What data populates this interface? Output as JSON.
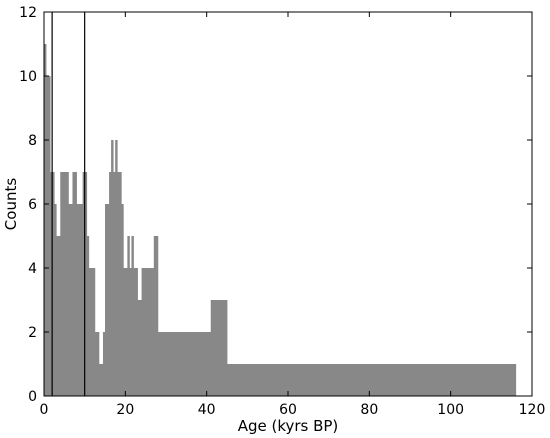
{
  "chart_data": {
    "type": "bar",
    "xlabel": "Age (kyrs BP)",
    "ylabel": "Counts",
    "xlim": [
      0,
      120
    ],
    "ylim": [
      0,
      12
    ],
    "xticks": [
      0,
      20,
      40,
      60,
      80,
      100,
      120
    ],
    "yticks": [
      0,
      2,
      4,
      6,
      8,
      10,
      12
    ],
    "grid": false,
    "bar_color": "#888888",
    "vertical_lines_x": [
      2,
      10
    ],
    "bins": [
      {
        "x0": 0.0,
        "x1": 0.5,
        "count": 11
      },
      {
        "x0": 0.5,
        "x1": 1.5,
        "count": 10
      },
      {
        "x0": 1.5,
        "x1": 2.5,
        "count": 7
      },
      {
        "x0": 2.5,
        "x1": 3.0,
        "count": 6
      },
      {
        "x0": 3.0,
        "x1": 4.0,
        "count": 5
      },
      {
        "x0": 4.0,
        "x1": 6.0,
        "count": 7
      },
      {
        "x0": 6.0,
        "x1": 7.0,
        "count": 6
      },
      {
        "x0": 7.0,
        "x1": 8.0,
        "count": 7
      },
      {
        "x0": 8.0,
        "x1": 9.5,
        "count": 6
      },
      {
        "x0": 9.5,
        "x1": 10.5,
        "count": 7
      },
      {
        "x0": 10.5,
        "x1": 11.0,
        "count": 5
      },
      {
        "x0": 11.0,
        "x1": 12.5,
        "count": 4
      },
      {
        "x0": 12.5,
        "x1": 13.5,
        "count": 2
      },
      {
        "x0": 13.5,
        "x1": 14.5,
        "count": 1
      },
      {
        "x0": 14.5,
        "x1": 15.0,
        "count": 2
      },
      {
        "x0": 15.0,
        "x1": 16.0,
        "count": 6
      },
      {
        "x0": 16.0,
        "x1": 16.5,
        "count": 7
      },
      {
        "x0": 16.5,
        "x1": 17.0,
        "count": 8
      },
      {
        "x0": 17.0,
        "x1": 17.5,
        "count": 7
      },
      {
        "x0": 17.5,
        "x1": 18.0,
        "count": 8
      },
      {
        "x0": 18.0,
        "x1": 19.0,
        "count": 7
      },
      {
        "x0": 19.0,
        "x1": 19.5,
        "count": 6
      },
      {
        "x0": 19.5,
        "x1": 20.5,
        "count": 4
      },
      {
        "x0": 20.5,
        "x1": 21.0,
        "count": 5
      },
      {
        "x0": 21.0,
        "x1": 21.5,
        "count": 4
      },
      {
        "x0": 21.5,
        "x1": 22.0,
        "count": 5
      },
      {
        "x0": 22.0,
        "x1": 23.0,
        "count": 4
      },
      {
        "x0": 23.0,
        "x1": 24.0,
        "count": 3
      },
      {
        "x0": 24.0,
        "x1": 27.0,
        "count": 4
      },
      {
        "x0": 27.0,
        "x1": 28.0,
        "count": 5
      },
      {
        "x0": 28.0,
        "x1": 29.0,
        "count": 2
      },
      {
        "x0": 29.0,
        "x1": 41.0,
        "count": 2
      },
      {
        "x0": 41.0,
        "x1": 45.0,
        "count": 3
      },
      {
        "x0": 45.0,
        "x1": 46.0,
        "count": 1
      },
      {
        "x0": 46.0,
        "x1": 116.0,
        "count": 1
      }
    ]
  }
}
